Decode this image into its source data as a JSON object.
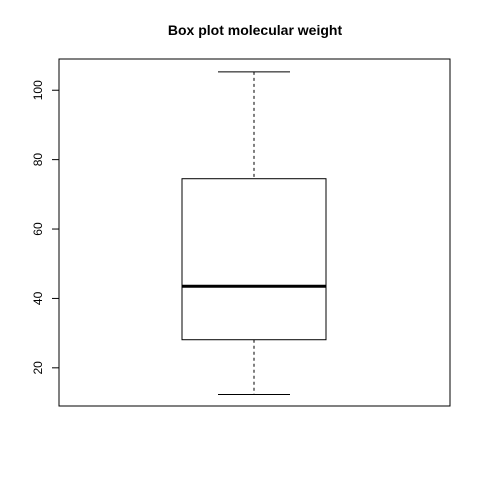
{
  "chart_data": {
    "type": "boxplot",
    "title": "Box plot molecular weight",
    "xlabel": "",
    "ylabel": "",
    "ylim": [
      9,
      109
    ],
    "yticks": [
      20,
      40,
      60,
      80,
      100
    ],
    "grid": false,
    "legend": "none",
    "box": {
      "whisker_low": 12.3,
      "q1": 28.1,
      "median": 43.5,
      "q3": 74.5,
      "whisker_high": 105.3
    },
    "colors": {
      "stroke": "#000000",
      "fill": "#ffffff"
    }
  }
}
